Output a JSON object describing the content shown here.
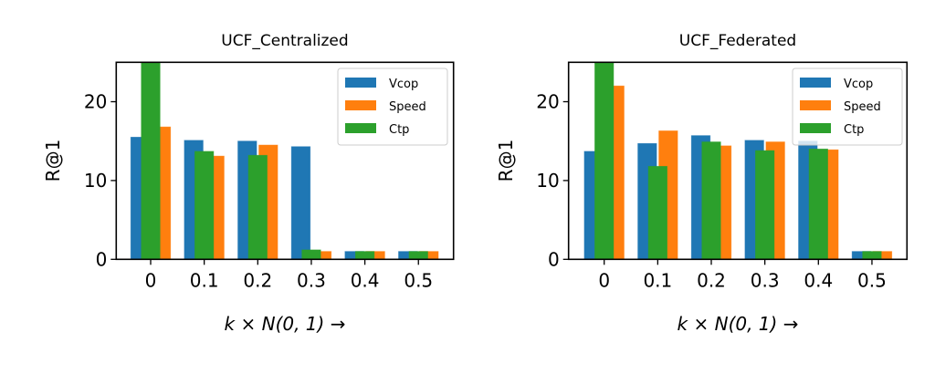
{
  "figure": {
    "series_colors": {
      "Vcop": "#1f77b4",
      "Speed": "#ff7f0e",
      "Ctp": "#2ca02c"
    },
    "legend_labels": [
      "Vcop",
      "Speed",
      "Ctp"
    ]
  },
  "chart_data": [
    {
      "type": "bar",
      "title": "UCF_Centralized",
      "xlabel": "k × N(0, 1) →",
      "ylabel": "R@1",
      "categories": [
        "0",
        "0.1",
        "0.2",
        "0.3",
        "0.4",
        "0.5"
      ],
      "ylim": [
        0,
        25
      ],
      "yticks": [
        0,
        10,
        20
      ],
      "grid": false,
      "legend_position": "top-right",
      "series": [
        {
          "name": "Vcop",
          "color": "#1f77b4",
          "values": [
            15.5,
            15.1,
            15.0,
            14.3,
            1.0,
            1.0
          ]
        },
        {
          "name": "Speed",
          "color": "#ff7f0e",
          "values": [
            16.8,
            13.1,
            14.5,
            1.0,
            1.0,
            1.0
          ]
        },
        {
          "name": "Ctp",
          "color": "#2ca02c",
          "values": [
            25.0,
            13.7,
            13.2,
            1.2,
            1.0,
            1.0
          ]
        }
      ]
    },
    {
      "type": "bar",
      "title": "UCF_Federated",
      "xlabel": "k × N(0, 1) →",
      "ylabel": "R@1",
      "categories": [
        "0",
        "0.1",
        "0.2",
        "0.3",
        "0.4",
        "0.5"
      ],
      "ylim": [
        0,
        25
      ],
      "yticks": [
        0,
        10,
        20
      ],
      "grid": false,
      "legend_position": "top-right",
      "series": [
        {
          "name": "Vcop",
          "color": "#1f77b4",
          "values": [
            13.7,
            14.7,
            15.7,
            15.1,
            15.0,
            1.0
          ]
        },
        {
          "name": "Speed",
          "color": "#ff7f0e",
          "values": [
            22.0,
            16.3,
            14.4,
            14.9,
            13.9,
            1.0
          ]
        },
        {
          "name": "Ctp",
          "color": "#2ca02c",
          "values": [
            25.0,
            11.8,
            14.9,
            13.8,
            14.0,
            1.0
          ]
        }
      ]
    }
  ]
}
